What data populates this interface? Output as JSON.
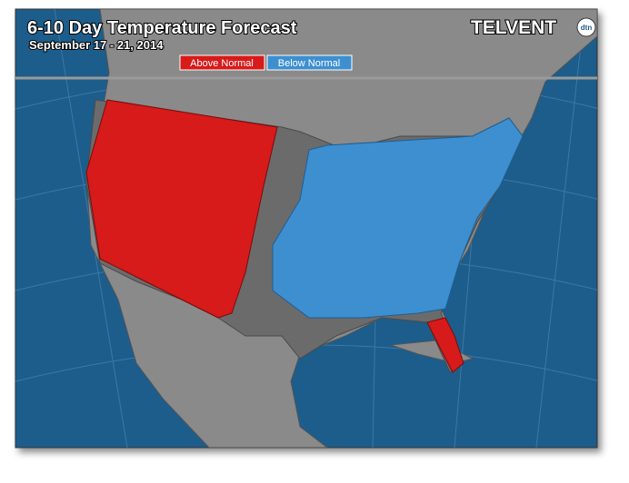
{
  "header": {
    "title": "6-10 Day Temperature Forecast",
    "subtitle": "September 17 - 21, 2014"
  },
  "legend": {
    "items": [
      {
        "label": "Above Normal"
      },
      {
        "label": "Below Normal"
      }
    ]
  },
  "logo": {
    "text": "TELVENT",
    "badge": "dtn"
  }
}
